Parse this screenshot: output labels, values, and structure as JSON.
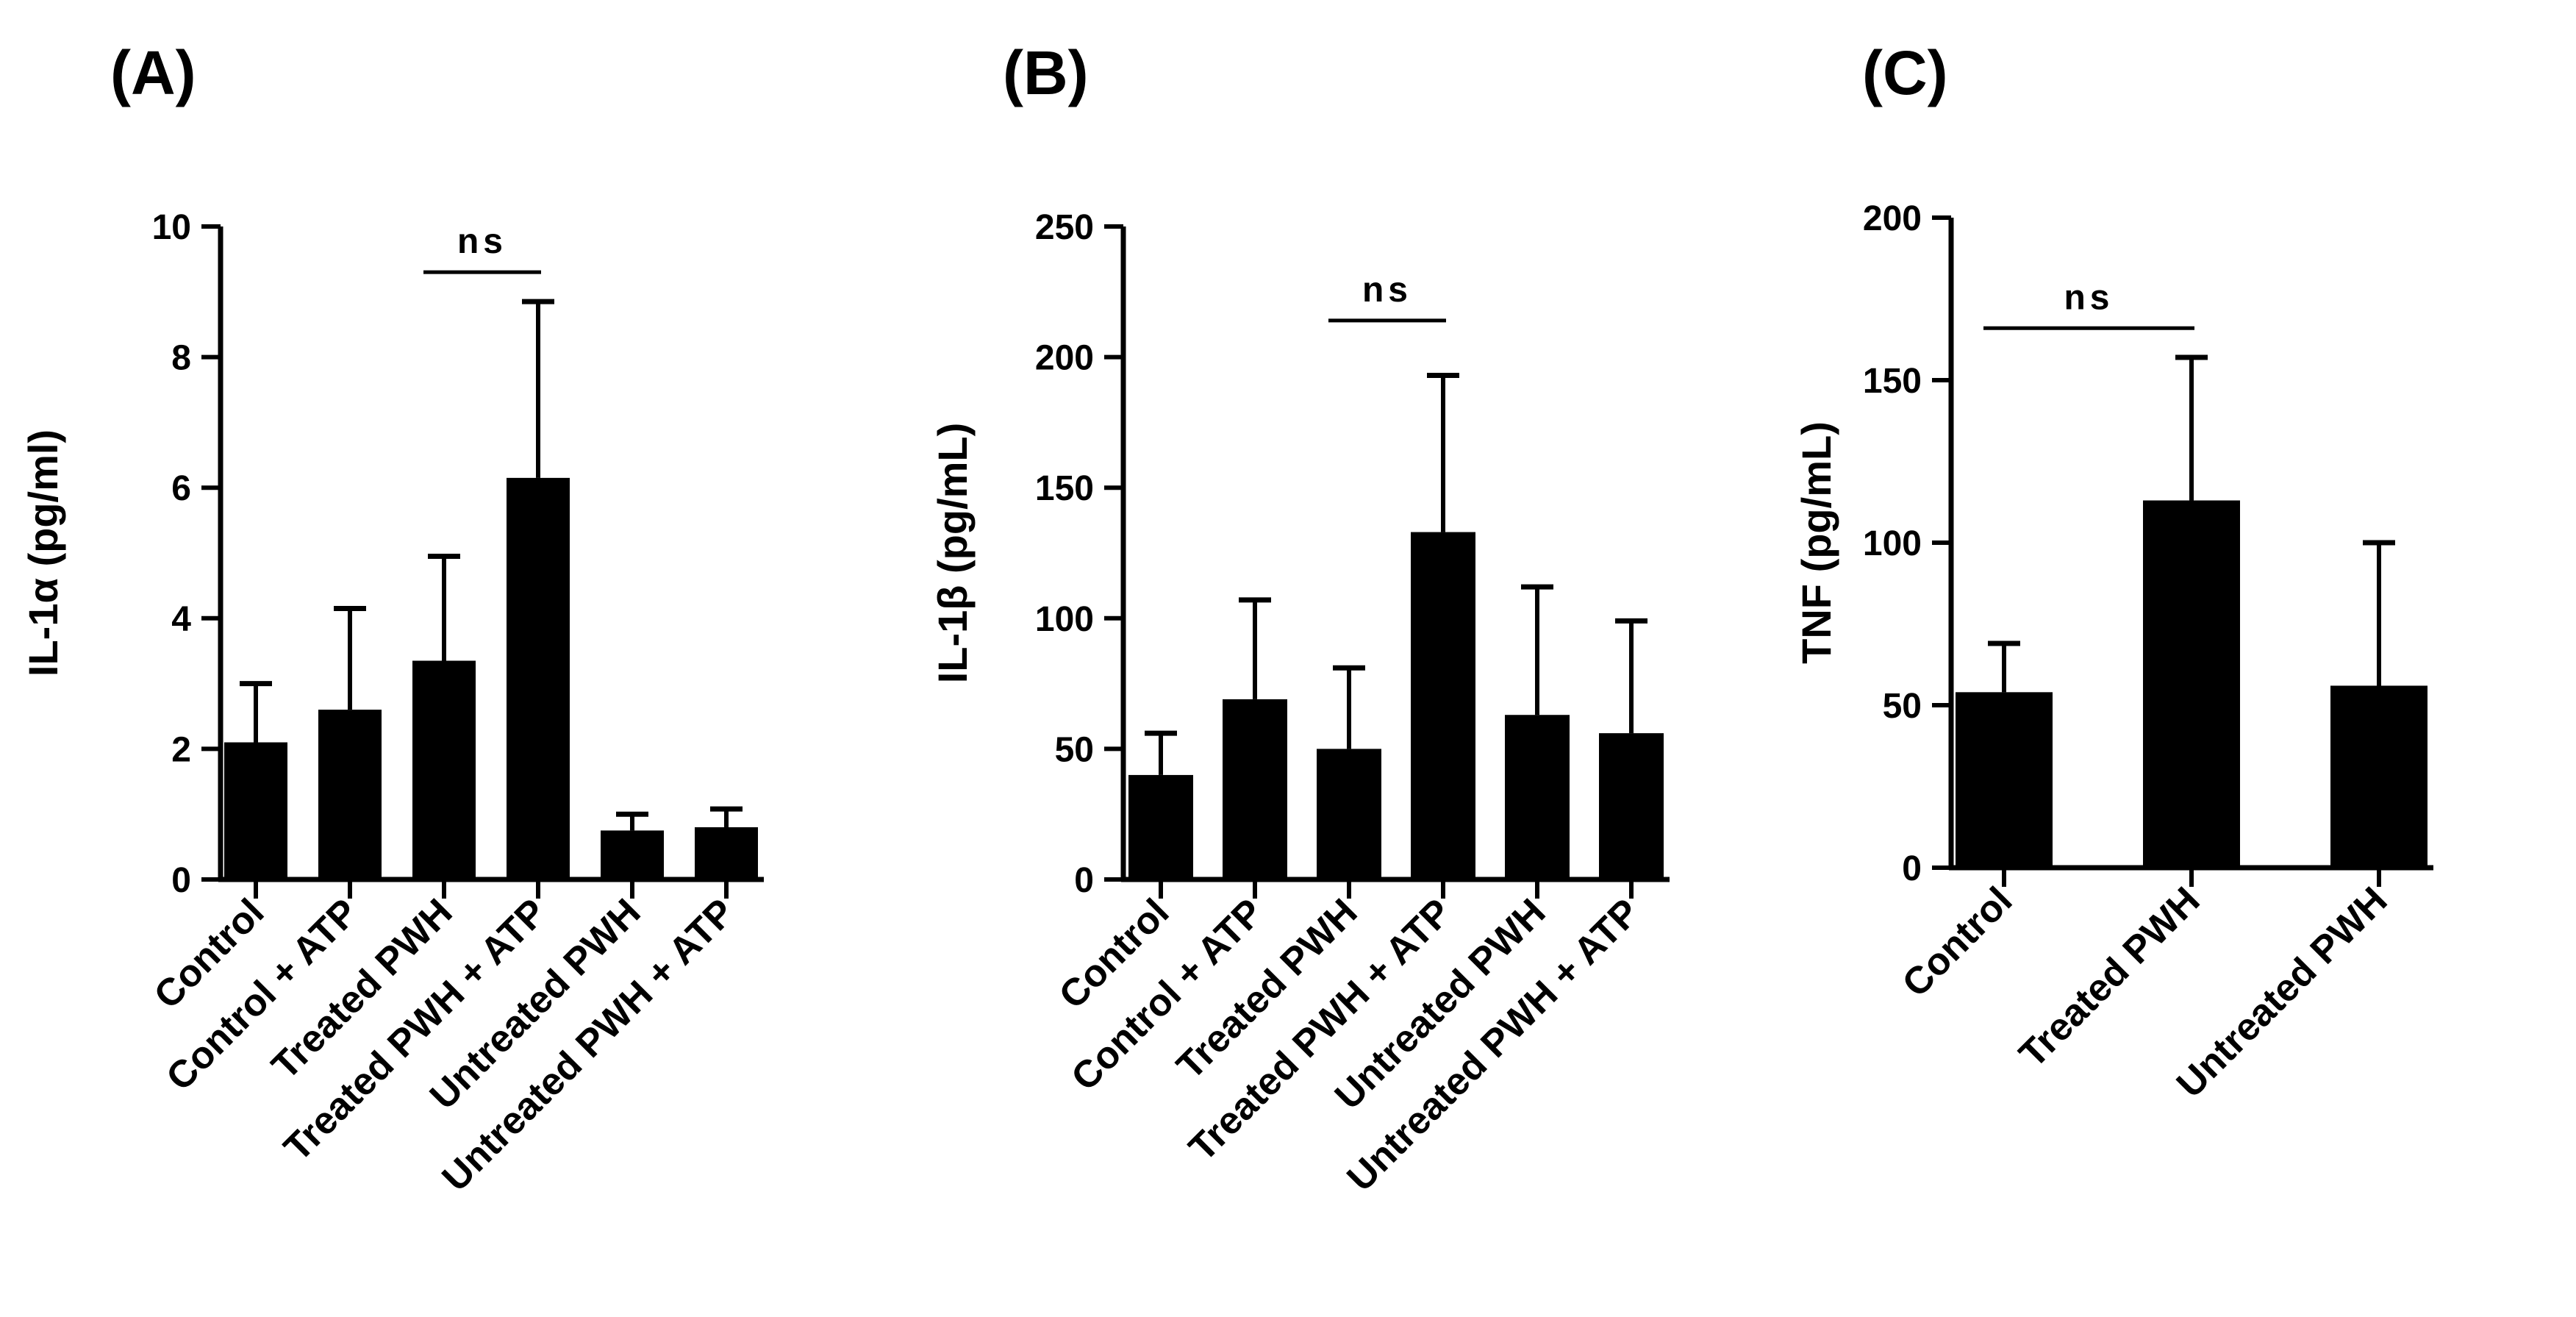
{
  "chart_data": [
    {
      "type": "bar",
      "panel_label": "(A)",
      "ylabel": "IL-1α (pg/ml)",
      "ylim": [
        0,
        10
      ],
      "yticks": [
        0,
        2,
        4,
        6,
        8,
        10
      ],
      "categories": [
        "Control",
        "Control + ATP",
        "Treated PWH",
        "Treated PWH + ATP",
        "Untreated PWH",
        "Untreated PWH + ATP"
      ],
      "values": [
        2.1,
        2.6,
        3.35,
        6.15,
        0.75,
        0.8
      ],
      "errors": [
        0.9,
        1.55,
        1.6,
        2.7,
        0.25,
        0.28
      ],
      "annotation": {
        "text": "ns",
        "from": 2,
        "to": 3,
        "level": 9.3
      }
    },
    {
      "type": "bar",
      "panel_label": "(B)",
      "ylabel": "IL-1β (pg/mL)",
      "ylim": [
        0,
        250
      ],
      "yticks": [
        0,
        50,
        100,
        150,
        200,
        250
      ],
      "categories": [
        "Control",
        "Control + ATP",
        "Treated PWH",
        "Treated PWH + ATP",
        "Untreated PWH",
        "Untreated PWH + ATP"
      ],
      "values": [
        40,
        69,
        50,
        133,
        63,
        56
      ],
      "errors": [
        16,
        38,
        31,
        60,
        49,
        43
      ],
      "annotation": {
        "text": "ns",
        "from": 2,
        "to": 3,
        "level": 214
      }
    },
    {
      "type": "bar",
      "panel_label": "(C)",
      "ylabel": "TNF (pg/mL)",
      "ylim": [
        0,
        200
      ],
      "yticks": [
        0,
        50,
        100,
        150,
        200
      ],
      "categories": [
        "Control",
        "Treated PWH",
        "Untreated PWH"
      ],
      "values": [
        54,
        113,
        56
      ],
      "errors": [
        15,
        44,
        44
      ],
      "annotation": {
        "text": "ns",
        "from": 0,
        "to": 1,
        "level": 166
      }
    }
  ]
}
